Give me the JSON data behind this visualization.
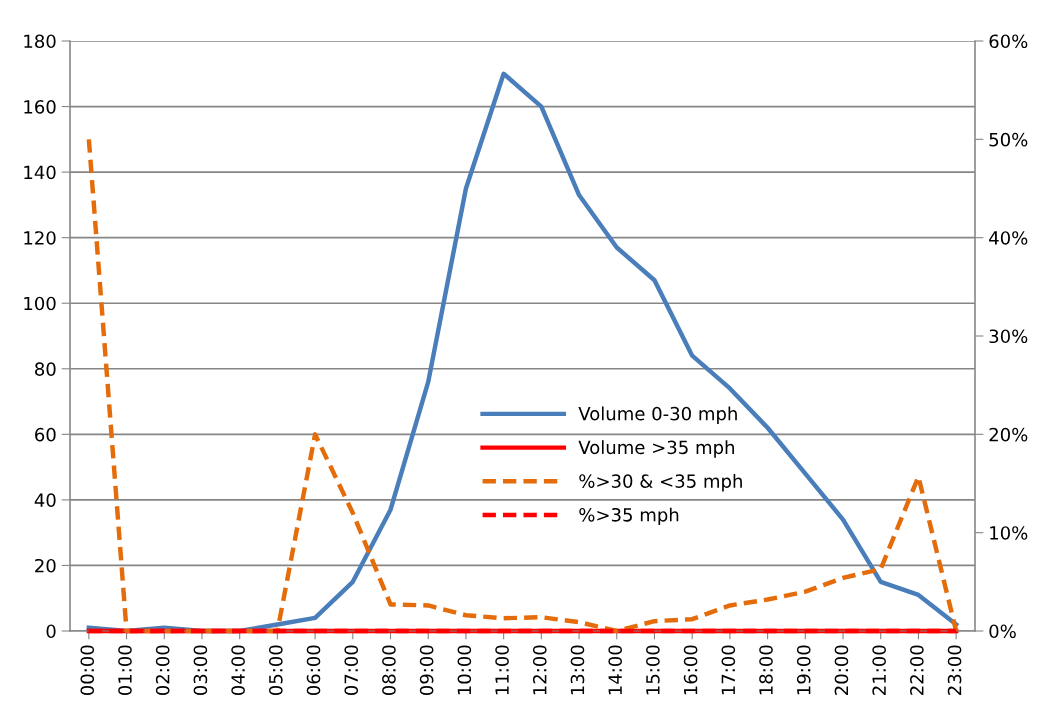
{
  "chart_data": {
    "type": "line",
    "categories": [
      "00:00",
      "01:00",
      "02:00",
      "03:00",
      "04:00",
      "05:00",
      "06:00",
      "07:00",
      "08:00",
      "09:00",
      "10:00",
      "11:00",
      "12:00",
      "13:00",
      "14:00",
      "15:00",
      "16:00",
      "17:00",
      "18:00",
      "19:00",
      "20:00",
      "21:00",
      "22:00",
      "23:00"
    ],
    "series": [
      {
        "name": "Volume 0-30 mph",
        "color": "#4a7ebb",
        "line_style": "solid",
        "values": [
          1,
          0,
          1,
          0,
          0,
          2,
          4,
          15,
          37,
          76,
          135,
          170,
          160,
          133,
          117,
          107,
          84,
          74,
          62,
          48,
          34,
          15,
          11,
          2
        ]
      },
      {
        "name": "Volume >35 mph",
        "color": "#ff0000",
        "line_style": "solid",
        "values": [
          0,
          0,
          0,
          0,
          0,
          0,
          0,
          0,
          0,
          0,
          0,
          0,
          0,
          0,
          0,
          0,
          0,
          0,
          0,
          0,
          0,
          0,
          0,
          0
        ]
      },
      {
        "name": "%>30 & <35 mph",
        "color": "#e46c0a",
        "line_style": "dashed",
        "axis": "y2",
        "values": [
          50,
          0,
          0,
          0,
          0,
          0,
          20,
          12,
          2.7,
          2.6,
          1.6,
          1.3,
          1.4,
          0.9,
          0,
          1,
          1.2,
          2.6,
          3.2,
          4,
          5.4,
          6.3,
          15.7,
          0
        ]
      },
      {
        "name": "%>35 mph",
        "color": "#ff0000",
        "line_style": "dashed",
        "axis": "y2",
        "values": [
          0,
          0,
          0,
          0,
          0,
          0,
          0,
          0,
          0,
          0,
          0,
          0,
          0,
          0,
          0,
          0,
          0,
          0,
          0,
          0,
          0,
          0,
          0,
          0
        ]
      }
    ],
    "ylim": [
      0,
      180
    ],
    "yticks": [
      0,
      20,
      40,
      60,
      80,
      100,
      120,
      140,
      160,
      180
    ],
    "y2lim": [
      0,
      60
    ],
    "y2ticks": [
      {
        "value": 0,
        "label": "0%"
      },
      {
        "value": 10,
        "label": "10%"
      },
      {
        "value": 20,
        "label": "20%"
      },
      {
        "value": 30,
        "label": "30%"
      },
      {
        "value": 40,
        "label": "40%"
      },
      {
        "value": 50,
        "label": "50%"
      },
      {
        "value": 60,
        "label": "60%"
      }
    ],
    "grid": "y",
    "legend": "center",
    "marker": "none"
  }
}
